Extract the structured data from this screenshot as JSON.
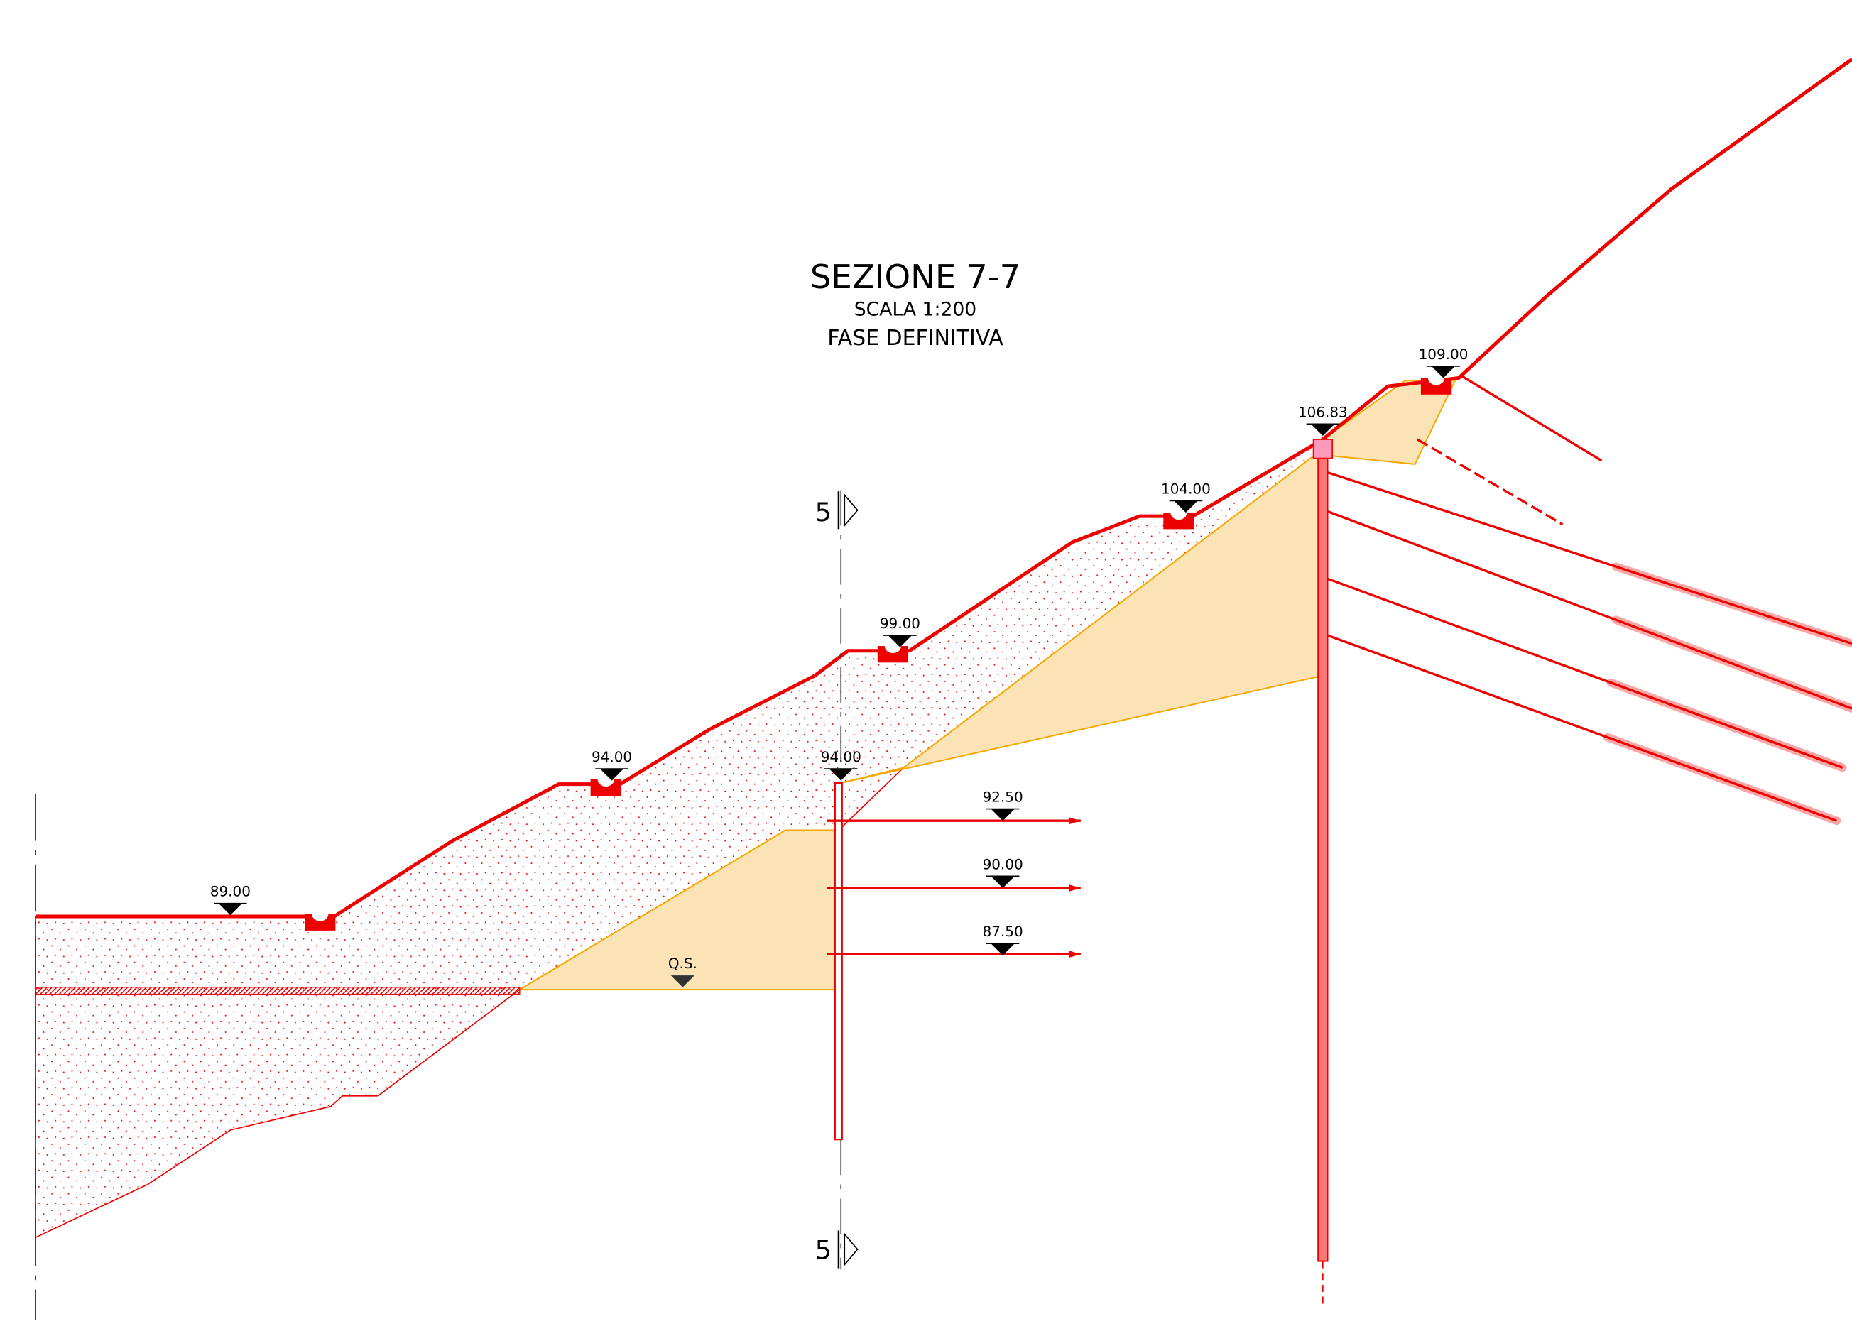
{
  "header": {
    "title": "SEZIONE 7-7",
    "scale": "SCALA 1:200",
    "phase": "FASE DEFINITIVA"
  },
  "elevations": [
    "89.00",
    "94.00",
    "99.00",
    "104.00",
    "106.83",
    "109.00",
    "94.00",
    "92.50",
    "90.00",
    "87.50"
  ],
  "groundwater": "Q.S.",
  "section_marks": [
    "5",
    "5"
  ]
}
